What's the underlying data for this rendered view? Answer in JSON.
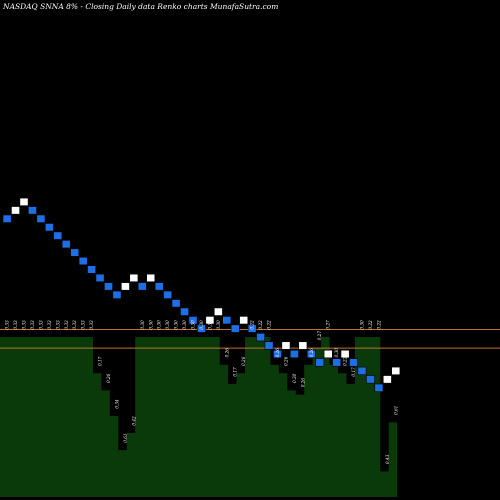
{
  "title": "NASDAQ SNNA 8% -  Closing Daily data  Renko  charts MunafaSutra.com",
  "colors": {
    "background": "#000000",
    "brick_up": "#ffffff",
    "brick_down": "#1e6fe6",
    "brick_outline": "#000000",
    "level_line": "#c07030",
    "volume_fill": "#0a3a0a",
    "text": "#ffffff"
  },
  "chart_data": [
    {
      "type": "renko",
      "title": "NASDAQ SNNA 8% -  Closing Daily data  Renko  charts MunafaSutra.com",
      "bricks": [
        {
          "dir": "down",
          "level": 53
        },
        {
          "dir": "up",
          "level": 54
        },
        {
          "dir": "up",
          "level": 55
        },
        {
          "dir": "down",
          "level": 54
        },
        {
          "dir": "down",
          "level": 53
        },
        {
          "dir": "down",
          "level": 52
        },
        {
          "dir": "down",
          "level": 51
        },
        {
          "dir": "down",
          "level": 50
        },
        {
          "dir": "down",
          "level": 49
        },
        {
          "dir": "down",
          "level": 48
        },
        {
          "dir": "down",
          "level": 47
        },
        {
          "dir": "down",
          "level": 46
        },
        {
          "dir": "down",
          "level": 45
        },
        {
          "dir": "down",
          "level": 44
        },
        {
          "dir": "up",
          "level": 45
        },
        {
          "dir": "up",
          "level": 46
        },
        {
          "dir": "down",
          "level": 45
        },
        {
          "dir": "up",
          "level": 46
        },
        {
          "dir": "down",
          "level": 45
        },
        {
          "dir": "down",
          "level": 44
        },
        {
          "dir": "down",
          "level": 43
        },
        {
          "dir": "down",
          "level": 42
        },
        {
          "dir": "down",
          "level": 41
        },
        {
          "dir": "down",
          "level": 40
        },
        {
          "dir": "up",
          "level": 41
        },
        {
          "dir": "up",
          "level": 42
        },
        {
          "dir": "down",
          "level": 41
        },
        {
          "dir": "down",
          "level": 40
        },
        {
          "dir": "up",
          "level": 41
        },
        {
          "dir": "down",
          "level": 40
        },
        {
          "dir": "down",
          "level": 39
        },
        {
          "dir": "down",
          "level": 38
        },
        {
          "dir": "down",
          "level": 37
        },
        {
          "dir": "up",
          "level": 38
        },
        {
          "dir": "down",
          "level": 37
        },
        {
          "dir": "up",
          "level": 38
        },
        {
          "dir": "down",
          "level": 37
        },
        {
          "dir": "down",
          "level": 36
        },
        {
          "dir": "up",
          "level": 37
        },
        {
          "dir": "down",
          "level": 36
        },
        {
          "dir": "up",
          "level": 37
        },
        {
          "dir": "down",
          "level": 36
        },
        {
          "dir": "down",
          "level": 35
        },
        {
          "dir": "down",
          "level": 34
        },
        {
          "dir": "down",
          "level": 33
        },
        {
          "dir": "up",
          "level": 34
        },
        {
          "dir": "up",
          "level": 35
        }
      ],
      "level_lines": [
        {
          "label": "upper",
          "level": 39.9
        },
        {
          "label": "lower",
          "level": 37.7
        }
      ],
      "volume_labels": [
        "0.33",
        "0.33",
        "0.33",
        "0.33",
        "0.33",
        "0.33",
        "0.33",
        "0.33",
        "0.33",
        "0.33",
        "0.33",
        "0.17",
        "0.26",
        "0.34",
        "0.61",
        "0.42",
        "0.30",
        "0.30",
        "0.30",
        "0.30",
        "0.30",
        "0.30",
        "0.30",
        "0.30",
        "0.30",
        "0.30",
        "0.26",
        "0.17",
        "0.26",
        "0.22",
        "0.22",
        "0.22",
        "0.26",
        "0.26",
        "0.30",
        "0.26",
        "0.26",
        "0.27",
        "0.27",
        "0.30",
        "0.22",
        "0.17",
        "0.30",
        "0.22",
        "0.22",
        "0.43",
        "0.61"
      ],
      "volumes": [
        0.75,
        0.75,
        0.75,
        0.75,
        0.75,
        0.75,
        0.75,
        0.75,
        0.75,
        0.75,
        0.75,
        0.58,
        0.5,
        0.38,
        0.22,
        0.3,
        0.75,
        0.75,
        0.75,
        0.75,
        0.75,
        0.75,
        0.75,
        0.75,
        0.75,
        0.75,
        0.62,
        0.53,
        0.58,
        0.75,
        0.75,
        0.75,
        0.62,
        0.58,
        0.5,
        0.48,
        0.62,
        0.7,
        0.75,
        0.62,
        0.58,
        0.53,
        0.75,
        0.75,
        0.75,
        0.12,
        0.35
      ]
    }
  ]
}
